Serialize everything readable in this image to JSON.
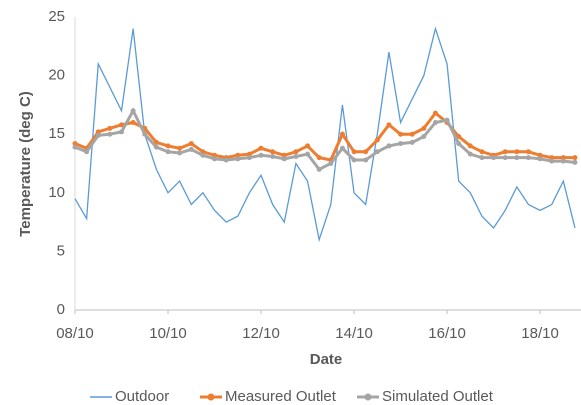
{
  "chart_data": {
    "type": "line",
    "x_label": "Date",
    "y_label": "Temperature (deg C)",
    "x": [
      8,
      8.25,
      8.5,
      8.75,
      9,
      9.25,
      9.5,
      9.75,
      10,
      10.25,
      10.5,
      10.75,
      11,
      11.25,
      11.5,
      11.75,
      12,
      12.25,
      12.5,
      12.75,
      13,
      13.25,
      13.5,
      13.75,
      14,
      14.25,
      14.5,
      14.75,
      15,
      15.25,
      15.5,
      15.75,
      16,
      16.25,
      16.5,
      16.75,
      17,
      17.25,
      17.5,
      17.75,
      18,
      18.25,
      18.5,
      18.75
    ],
    "series": [
      {
        "name": "Outdoor",
        "color": "#5b9bd5",
        "marker": false,
        "values": [
          9.5,
          7.8,
          21,
          19,
          17,
          24,
          15,
          12,
          10,
          11,
          9,
          10,
          8.5,
          7.5,
          8,
          10,
          11.5,
          9,
          7.5,
          12.5,
          11,
          6,
          9,
          17.5,
          10,
          9,
          15,
          22,
          16,
          18,
          20,
          24,
          21,
          11,
          10,
          8,
          7,
          8.5,
          10.5,
          9,
          8.5,
          9,
          11,
          7
        ]
      },
      {
        "name": "Measured Outlet",
        "color": "#ed7d31",
        "marker": true,
        "values": [
          14.2,
          13.8,
          15.2,
          15.5,
          15.8,
          16,
          15.5,
          14.3,
          14,
          13.8,
          14.2,
          13.5,
          13.2,
          13,
          13.2,
          13.3,
          13.8,
          13.5,
          13.2,
          13.5,
          14,
          13,
          12.8,
          15,
          13.5,
          13.5,
          14.5,
          15.8,
          15,
          15,
          15.5,
          16.8,
          16,
          14.8,
          14,
          13.5,
          13.2,
          13.5,
          13.5,
          13.5,
          13.2,
          13,
          13,
          13
        ]
      },
      {
        "name": "Simulated Outlet",
        "color": "#a5a5a5",
        "marker": true,
        "values": [
          13.9,
          13.5,
          14.9,
          15,
          15.2,
          17,
          15,
          13.9,
          13.5,
          13.4,
          13.7,
          13.2,
          12.9,
          12.8,
          12.9,
          13,
          13.2,
          13.1,
          12.9,
          13.1,
          13.3,
          12,
          12.5,
          13.8,
          12.8,
          12.8,
          13.5,
          14,
          14.2,
          14.3,
          14.8,
          16,
          16.2,
          14.2,
          13.3,
          13,
          13,
          13,
          13,
          13,
          12.9,
          12.7,
          12.7,
          12.6
        ]
      }
    ],
    "xlim": [
      8,
      18.88
    ],
    "xticks": [
      {
        "value": 8,
        "label": "08/10"
      },
      {
        "value": 10,
        "label": "10/10"
      },
      {
        "value": 12,
        "label": "12/10"
      },
      {
        "value": 14,
        "label": "14/10"
      },
      {
        "value": 16,
        "label": "16/10"
      },
      {
        "value": 18,
        "label": "18/10"
      }
    ],
    "ylim": [
      0,
      25
    ],
    "yticks": [
      0,
      5,
      10,
      15,
      20,
      25
    ],
    "grid": true,
    "legend": "bottom"
  }
}
